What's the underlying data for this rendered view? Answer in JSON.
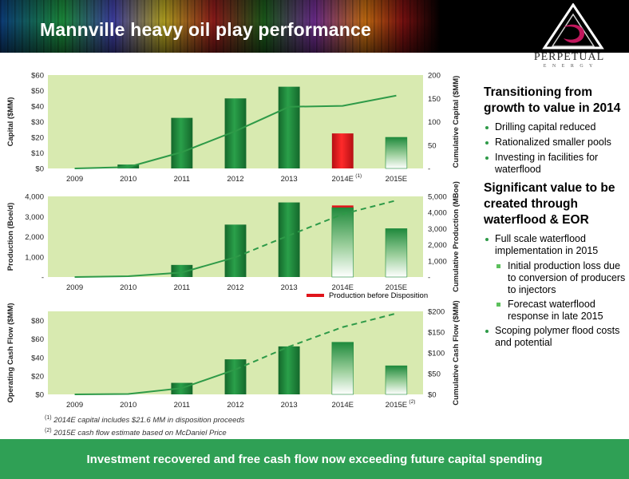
{
  "title": "Mannville heavy oil play performance",
  "logo": {
    "name": "PERPETUAL",
    "sub": "E N E R G Y"
  },
  "footer": "Investment recovered and free cash flow now exceeding future capital spending",
  "footnotes": [
    "2014E capital includes $21.6 MM in disposition proceeds",
    "2015E cash flow estimate based on McDaniel Price"
  ],
  "footnote_marks": [
    "(1)",
    "(2)"
  ],
  "right_panel": {
    "heading1": "Transitioning from growth to value in 2014",
    "bullets1": [
      "Drilling capital reduced",
      "Rationalized smaller pools",
      "Investing in facilities for waterflood"
    ],
    "heading2": "Significant value to be created through waterflood & EOR",
    "bullet2a": "Full scale waterflood implementation in 2015",
    "sub2": [
      "Initial production loss due to conversion of producers to injectors",
      "Forecast waterflood response in late 2015"
    ],
    "bullet2b": "Scoping polymer flood costs and potential"
  },
  "colors": {
    "bar_green": "#1f8a3c",
    "bar_red": "#e0141b",
    "plot_bg": "#d8eab0",
    "line": "#2e9a48",
    "footer": "#2fa055"
  },
  "chart_data": [
    {
      "type": "bar",
      "categories": [
        "2009",
        "2010",
        "2011",
        "2012",
        "2013",
        "2014E",
        "2015E"
      ],
      "category_marks": {
        "2014E": "(1)"
      },
      "series": [
        {
          "values": [
            0,
            2.5,
            32.5,
            45,
            52.5,
            22.5,
            20
          ],
          "styles": [
            "green",
            "green",
            "green",
            "green",
            "green",
            "red",
            "green-fade"
          ]
        }
      ],
      "line": {
        "values": [
          0,
          3,
          35,
          80,
          132,
          134,
          156
        ],
        "dashed_from": null
      },
      "ylabel": "Capital ($MM)",
      "y2label": "Cumulative Capital ($MM)",
      "ylim": [
        0,
        60
      ],
      "yticks": [
        "$0",
        "$10",
        "$20",
        "$30",
        "$40",
        "$50",
        "$60"
      ],
      "y2lim": [
        0,
        200
      ],
      "y2ticks": [
        "-",
        "50",
        "100",
        "150",
        "200"
      ]
    },
    {
      "type": "bar",
      "categories": [
        "2009",
        "2010",
        "2011",
        "2012",
        "2013",
        "2014E",
        "2015E"
      ],
      "series": [
        {
          "values": [
            0,
            0,
            600,
            2600,
            3700,
            3450,
            2400
          ],
          "styles": [
            "green",
            "green",
            "green",
            "green",
            "green",
            "green-fade",
            "green-fade"
          ]
        },
        {
          "name": "Production before Disposition",
          "values": [
            0,
            0,
            0,
            0,
            0,
            100,
            0
          ]
        }
      ],
      "line": {
        "values": [
          0,
          50,
          280,
          1230,
          2580,
          3900,
          4750
        ],
        "dashed_from": 3
      },
      "ylabel": "Production (Boe/d)",
      "y2label": "Cumulative Production (MBoe)",
      "ylim": [
        0,
        4000
      ],
      "yticks": [
        "-",
        "1,000",
        "2,000",
        "3,000",
        "4,000"
      ],
      "y2lim": [
        0,
        5000
      ],
      "y2ticks": [
        "-",
        "1,000",
        "2,000",
        "3,000",
        "4,000",
        "5,000"
      ],
      "legend": "bottom-right"
    },
    {
      "type": "bar",
      "categories": [
        "2009",
        "2010",
        "2011",
        "2012",
        "2013",
        "2014E",
        "2015E"
      ],
      "category_marks": {
        "2015E": "(2)"
      },
      "series": [
        {
          "values": [
            0,
            0,
            12.5,
            38,
            52,
            56.5,
            31
          ],
          "styles": [
            "green",
            "green",
            "green",
            "green",
            "green",
            "green-fade",
            "green-fade"
          ]
        }
      ],
      "line": {
        "values": [
          0,
          1,
          15,
          60,
          115,
          162,
          195
        ],
        "dashed_from": 3
      },
      "ylabel": "Operating Cash Flow ($MM)",
      "y2label": "Cumulative Cash Flow ($MM)",
      "ylim": [
        0,
        90
      ],
      "yticks": [
        "$0",
        "$20",
        "$40",
        "$60",
        "$80"
      ],
      "ytick_values": [
        0,
        20,
        40,
        60,
        80
      ],
      "y2lim": [
        0,
        200
      ],
      "y2ticks": [
        "$0",
        "$50",
        "$100",
        "$150",
        "$200"
      ]
    }
  ]
}
